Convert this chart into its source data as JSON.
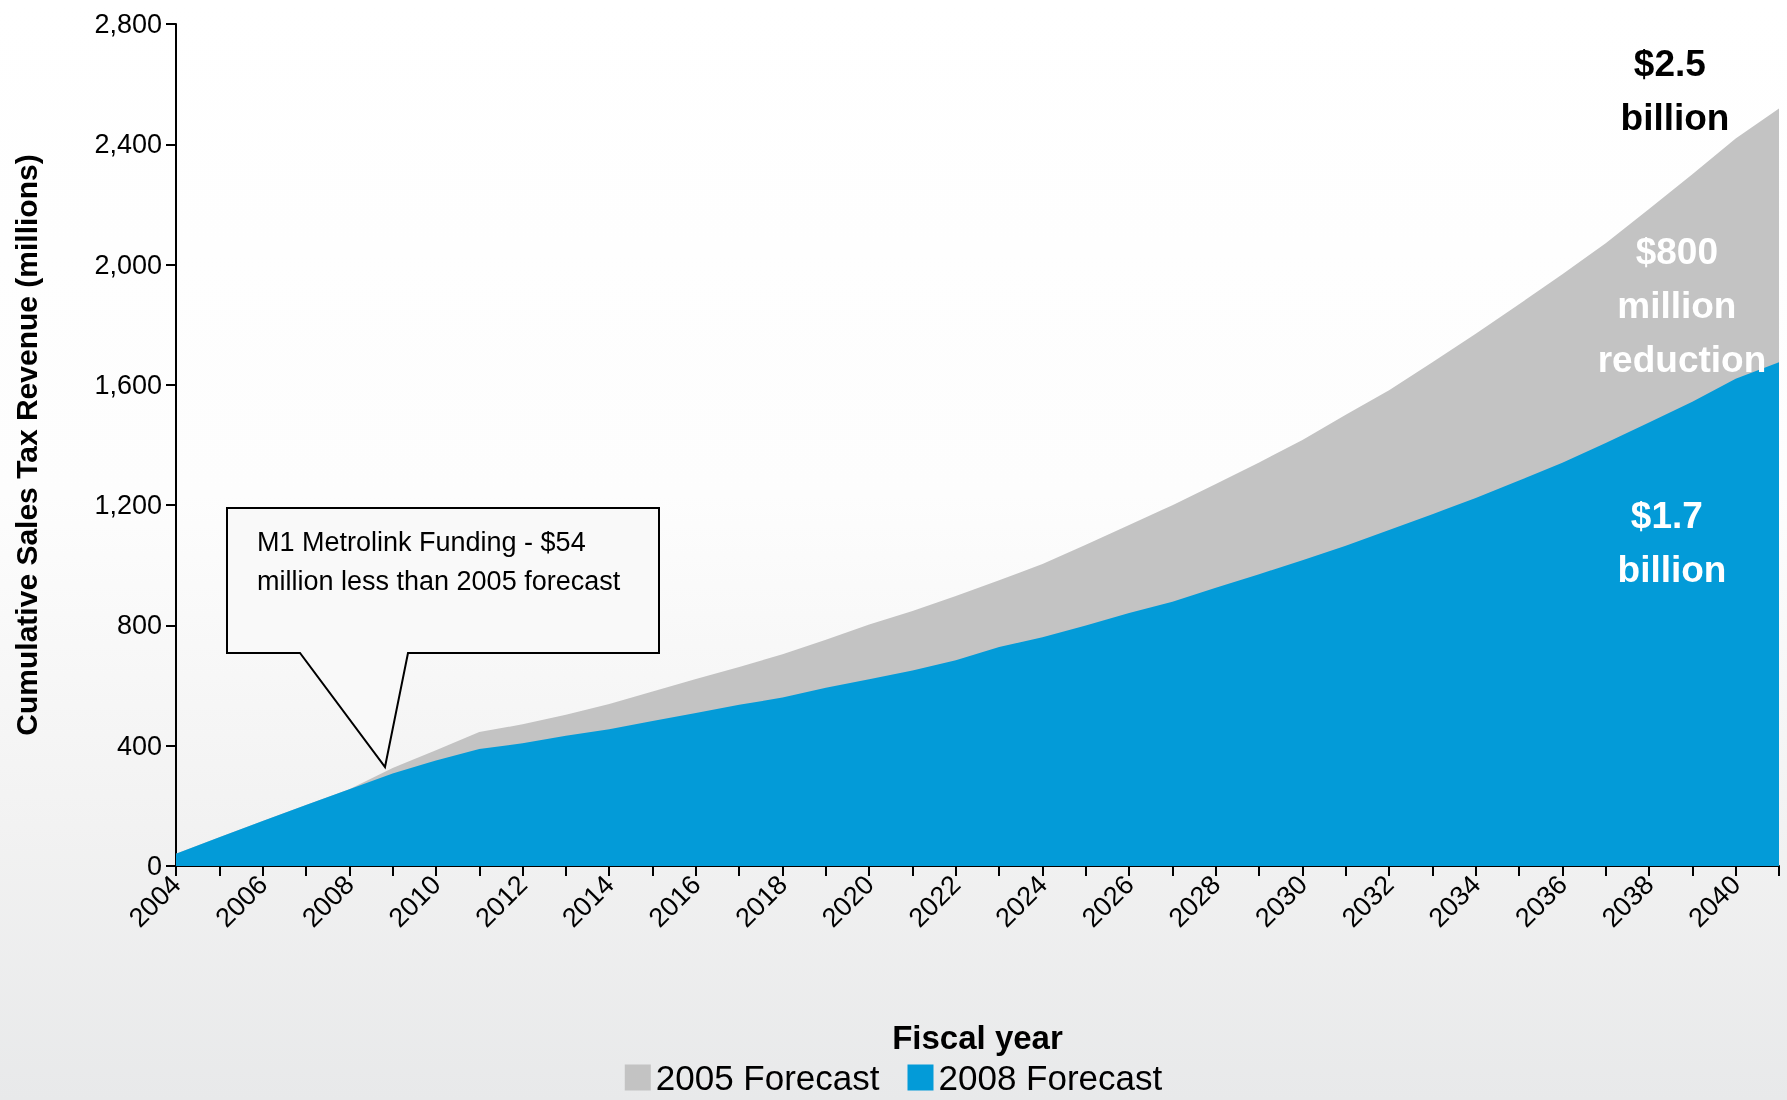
{
  "chart_data": {
    "type": "area",
    "xlabel": "Fiscal year",
    "ylabel": "Cumulative Sales Tax Revenue (millions)",
    "categories": [
      "2004",
      null,
      "2006",
      null,
      "2008",
      null,
      "2010",
      null,
      "2012",
      null,
      "2014",
      null,
      "2016",
      null,
      "2018",
      null,
      "2020",
      null,
      "2022",
      null,
      "2024",
      null,
      "2026",
      null,
      "2028",
      null,
      "2030",
      null,
      "2032",
      null,
      "2034",
      null,
      "2036",
      null,
      "2038",
      null,
      "2040",
      null
    ],
    "series": [
      {
        "name": "2005 Forecast",
        "color": "#c3c3c3",
        "values": [
          41,
          96,
          150,
          203,
          255,
          326,
          385,
          446,
          471,
          503,
          539,
          580,
          622,
          662,
          704,
          752,
          803,
          848,
          898,
          950,
          1004,
          1068,
          1134,
          1200,
          1270,
          1342,
          1417,
          1501,
          1582,
          1675,
          1770,
          1868,
          1968,
          2071,
          2185,
          2300,
          2419,
          2519
        ]
      },
      {
        "name": "2008 Forecast",
        "color": "#039bd8",
        "values": [
          41,
          96,
          150,
          203,
          255,
          308,
          351,
          389,
          408,
          433,
          455,
          482,
          509,
          536,
          560,
          593,
          621,
          650,
          684,
          728,
          761,
          800,
          841,
          879,
          925,
          970,
          1017,
          1065,
          1117,
          1170,
          1224,
          1282,
          1341,
          1407,
          1475,
          1544,
          1620,
          1675
        ]
      }
    ],
    "ylim": [
      0,
      2800
    ],
    "yticks": [
      0,
      400,
      800,
      {
        "value": 1200,
        "label": "1,200"
      },
      {
        "value": 1600,
        "label": "1,600"
      },
      {
        "value": 2000,
        "label": "2,000"
      },
      {
        "value": 2400,
        "label": "2,400"
      },
      {
        "value": 2800,
        "label": "2,800"
      }
    ],
    "annotations": [
      "M1 Metrolink Funding - $54 million less than 2005 forecast",
      "$2.5 billion",
      "$800 million reduction",
      "$1.7 billion"
    ],
    "grid": false,
    "legend": "bottom",
    "marker": "none"
  }
}
